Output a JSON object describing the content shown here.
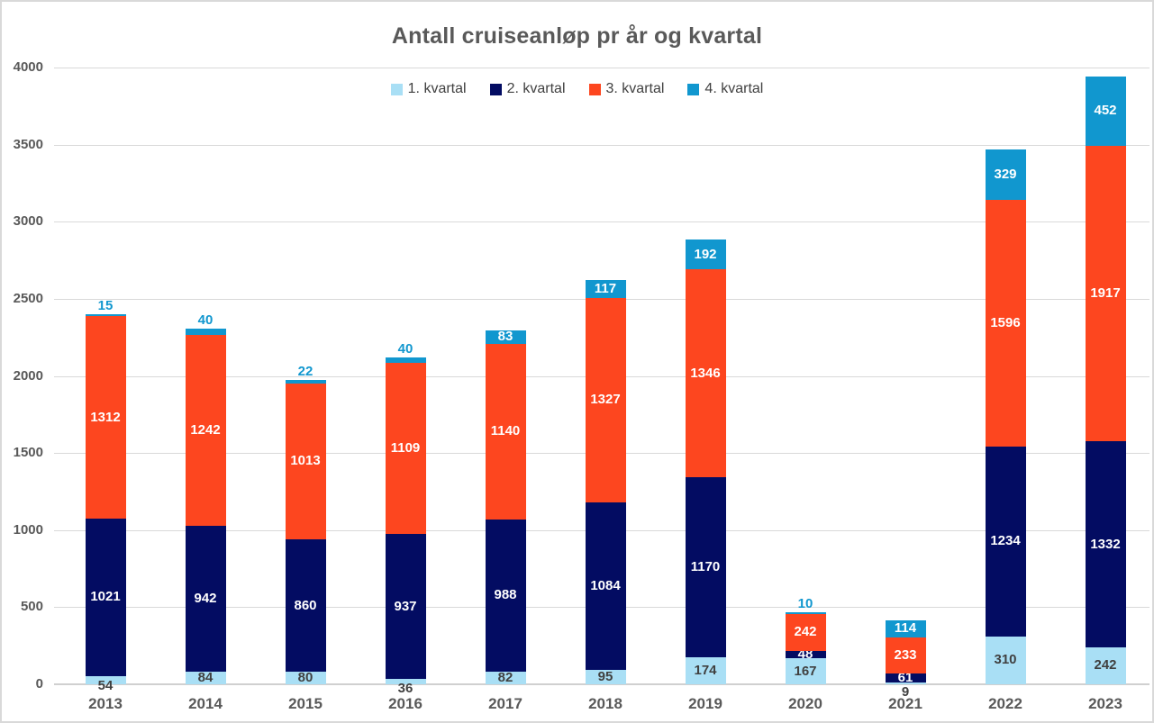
{
  "chart_data": {
    "type": "bar",
    "stacked": true,
    "title": "Antall cruiseanløp pr år og kvartal",
    "categories": [
      "2013",
      "2014",
      "2015",
      "2016",
      "2017",
      "2018",
      "2019",
      "2020",
      "2021",
      "2022",
      "2023"
    ],
    "series": [
      {
        "name": "1. kvartal",
        "color": "#A9DFF5",
        "label_color": "#404040",
        "values": [
          54,
          84,
          80,
          36,
          82,
          95,
          174,
          167,
          9,
          310,
          242
        ]
      },
      {
        "name": "2. kvartal",
        "color": "#030C62",
        "label_color": "#FFFFFF",
        "values": [
          1021,
          942,
          860,
          937,
          988,
          1084,
          1170,
          48,
          61,
          1234,
          1332
        ]
      },
      {
        "name": "3. kvartal",
        "color": "#FD461F",
        "label_color": "#FFFFFF",
        "values": [
          1312,
          1242,
          1013,
          1109,
          1140,
          1327,
          1346,
          242,
          233,
          1596,
          1917
        ]
      },
      {
        "name": "4. kvartal",
        "color": "#1197CF",
        "label_color": "#FFFFFF",
        "values": [
          15,
          40,
          22,
          40,
          83,
          117,
          192,
          10,
          114,
          329,
          452
        ]
      }
    ],
    "ylim": [
      0,
      4000
    ],
    "ytick_step": 500,
    "yticks": [
      "0",
      "500",
      "1000",
      "1500",
      "2000",
      "2500",
      "3000",
      "3500",
      "4000"
    ],
    "xlabel": "",
    "ylabel": "",
    "grid": true,
    "legend_position": "top",
    "grid_color": "#D9D9D9",
    "axis_text_color": "#595959",
    "legend_text_color": "#404040",
    "background_color": "#FFFFFF"
  }
}
